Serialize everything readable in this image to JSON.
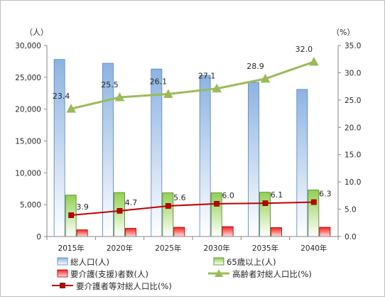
{
  "chart_data": {
    "type": "bar",
    "categories": [
      "2015年",
      "2020年",
      "2025年",
      "2030年",
      "2035年",
      "2040年"
    ],
    "y_left": {
      "unit": "（人）",
      "ylim": [
        0,
        30000
      ],
      "ticks": [
        "0",
        "5,000",
        "10,000",
        "15,000",
        "20,000",
        "25,000",
        "30,000"
      ]
    },
    "y_right": {
      "unit": "（%）",
      "ylim": [
        0,
        35
      ],
      "ticks": [
        "0.0",
        "5.0",
        "10.0",
        "15.0",
        "20.0",
        "25.0",
        "30.0",
        "35.0"
      ]
    },
    "series": [
      {
        "name": "総人口(人)",
        "kind": "bar",
        "axis": "left",
        "values": [
          27800,
          27200,
          26300,
          25300,
          24200,
          23100
        ],
        "color": "#8db3e2"
      },
      {
        "name": "65歳以上(人)",
        "kind": "bar",
        "axis": "left",
        "values": [
          6500,
          6900,
          6850,
          6850,
          6950,
          7300
        ],
        "color": "#92d050"
      },
      {
        "name": "要介護(支援)者数(人)",
        "kind": "bar",
        "axis": "left",
        "values": [
          1050,
          1280,
          1450,
          1550,
          1400,
          1450
        ],
        "color": "#ff0000"
      },
      {
        "name": "高齢者対総人口比(%)",
        "kind": "line",
        "axis": "right",
        "values": [
          23.4,
          25.5,
          26.1,
          27.1,
          28.9,
          32.0
        ],
        "labels": [
          "23.4",
          "25.5",
          "26.1",
          "27.1",
          "28.9",
          "32.0"
        ],
        "color": "#9bbb59"
      },
      {
        "name": "要介護者等対総人口比(%)",
        "kind": "line",
        "axis": "right",
        "values": [
          3.9,
          4.7,
          5.6,
          6.0,
          6.1,
          6.3
        ],
        "labels": [
          "3.9",
          "4.7",
          "5.6",
          "6.0",
          "6.1",
          "6.3"
        ],
        "color": "#c00000"
      }
    ],
    "grid": false,
    "legend_position": "bottom"
  }
}
